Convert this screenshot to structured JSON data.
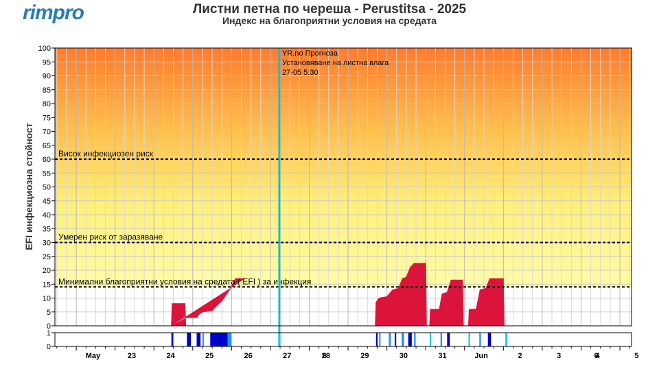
{
  "header": {
    "logo": "rimpro",
    "title": "Листни петна по череша - Perustitsa - 2025",
    "subtitle": "Индекс на благоприятни условия на средата"
  },
  "chart_data": {
    "type": "area",
    "ylabel": "EFI инфекциозна стойност",
    "ylim": [
      0,
      100
    ],
    "yticks": [
      0,
      5,
      10,
      15,
      20,
      25,
      30,
      35,
      40,
      45,
      50,
      55,
      60,
      65,
      70,
      75,
      80,
      85,
      90,
      95,
      100
    ],
    "background": "gradient orange (top) to yellow, white below 14",
    "colors": {
      "area": "#dc143c",
      "thresholds": "#000000",
      "forecast_line": "#22b8c8",
      "wetness": "#0000cc",
      "wetness_light": "#1e90ff",
      "wetness_forecast": "#22c8e8"
    },
    "x_labels": [
      {
        "day": 22.0,
        "label": "May"
      },
      {
        "day": 23.0,
        "label": "23"
      },
      {
        "day": 24.0,
        "label": "24"
      },
      {
        "day": 25.0,
        "label": "25"
      },
      {
        "day": 26.0,
        "label": "26"
      },
      {
        "day": 27.0,
        "label": "27"
      },
      {
        "day": 28.0,
        "label": "28"
      },
      {
        "day": 28.25,
        "label": "6"
      },
      {
        "day": 29.0,
        "label": "29"
      },
      {
        "day": 30.0,
        "label": "30"
      },
      {
        "day": 31.0,
        "label": "31"
      },
      {
        "day": 32.0,
        "label": "Jun"
      },
      {
        "day": 33.0,
        "label": "2"
      },
      {
        "day": 34.0,
        "label": "3"
      },
      {
        "day": 35.0,
        "label": "4"
      },
      {
        "day": 35.25,
        "label": "6"
      },
      {
        "day": 36.0,
        "label": "5"
      }
    ],
    "x_range_days": [
      21.45,
      36.3
    ],
    "thresholds": [
      {
        "value": 60,
        "label": "Висок инфекциозен риск"
      },
      {
        "value": 30,
        "label": "Умерен риск от заразяване"
      },
      {
        "value": 14,
        "label": "Минимални благоприятни условия на средата ( EFI ) за инфекция"
      }
    ],
    "forecast": {
      "day": 27.23,
      "lines": [
        "YR.no Прогноза",
        "Установяване на листна влага",
        "27-05 5:30"
      ]
    },
    "efi_series": [
      [
        24.45,
        0
      ],
      [
        24.47,
        8
      ],
      [
        24.8,
        8
      ],
      [
        24.82,
        0
      ],
      [
        24.85,
        3
      ],
      [
        25.1,
        3
      ],
      [
        25.15,
        4
      ],
      [
        25.25,
        5
      ],
      [
        25.5,
        5.5
      ],
      [
        25.6,
        7
      ],
      [
        25.75,
        9
      ],
      [
        25.85,
        11
      ],
      [
        25.95,
        13
      ],
      [
        26.05,
        15.5
      ],
      [
        26.1,
        17
      ],
      [
        26.35,
        17
      ],
      [
        26.38,
        0
      ],
      [
        29.7,
        0
      ],
      [
        29.72,
        8.5
      ],
      [
        29.8,
        10
      ],
      [
        30.0,
        10.5
      ],
      [
        30.15,
        13
      ],
      [
        30.3,
        13.5
      ],
      [
        30.4,
        17
      ],
      [
        30.5,
        17.5
      ],
      [
        30.6,
        21
      ],
      [
        30.7,
        22.5
      ],
      [
        31.0,
        22.5
      ],
      [
        31.02,
        0
      ],
      [
        31.1,
        0
      ],
      [
        31.12,
        6
      ],
      [
        31.35,
        6
      ],
      [
        31.42,
        11.5
      ],
      [
        31.55,
        12
      ],
      [
        31.65,
        16.5
      ],
      [
        31.95,
        16.5
      ],
      [
        31.97,
        0
      ],
      [
        32.1,
        0
      ],
      [
        32.12,
        6
      ],
      [
        32.3,
        6
      ],
      [
        32.4,
        13
      ],
      [
        32.55,
        13.5
      ],
      [
        32.65,
        17
      ],
      [
        33.0,
        17
      ],
      [
        33.02,
        0
      ]
    ],
    "wetness": {
      "ylim": [
        0,
        1
      ],
      "yticks": [
        "0",
        "1"
      ],
      "bands": [
        {
          "start": 24.45,
          "end": 24.5,
          "kind": "wet"
        },
        {
          "start": 24.85,
          "end": 24.95,
          "kind": "wet"
        },
        {
          "start": 25.1,
          "end": 25.2,
          "kind": "wet"
        },
        {
          "start": 25.25,
          "end": 25.28,
          "kind": "light"
        },
        {
          "start": 25.45,
          "end": 25.9,
          "kind": "wet"
        },
        {
          "start": 25.9,
          "end": 26.0,
          "kind": "light"
        },
        {
          "start": 29.72,
          "end": 29.76,
          "kind": "wet"
        },
        {
          "start": 29.8,
          "end": 29.83,
          "kind": "light"
        },
        {
          "start": 30.05,
          "end": 30.1,
          "kind": "light"
        },
        {
          "start": 30.2,
          "end": 30.24,
          "kind": "wet"
        },
        {
          "start": 30.38,
          "end": 30.44,
          "kind": "light"
        },
        {
          "start": 30.55,
          "end": 30.64,
          "kind": "wet"
        },
        {
          "start": 30.7,
          "end": 30.74,
          "kind": "light"
        },
        {
          "start": 31.1,
          "end": 31.14,
          "kind": "forecast"
        },
        {
          "start": 31.38,
          "end": 31.42,
          "kind": "light"
        },
        {
          "start": 31.55,
          "end": 31.62,
          "kind": "wet"
        },
        {
          "start": 32.1,
          "end": 32.14,
          "kind": "forecast"
        },
        {
          "start": 32.38,
          "end": 32.42,
          "kind": "light"
        },
        {
          "start": 32.6,
          "end": 32.68,
          "kind": "wet"
        },
        {
          "start": 33.05,
          "end": 33.1,
          "kind": "forecast"
        },
        {
          "start": 27.2,
          "end": 27.26,
          "kind": "forecast"
        }
      ]
    }
  }
}
